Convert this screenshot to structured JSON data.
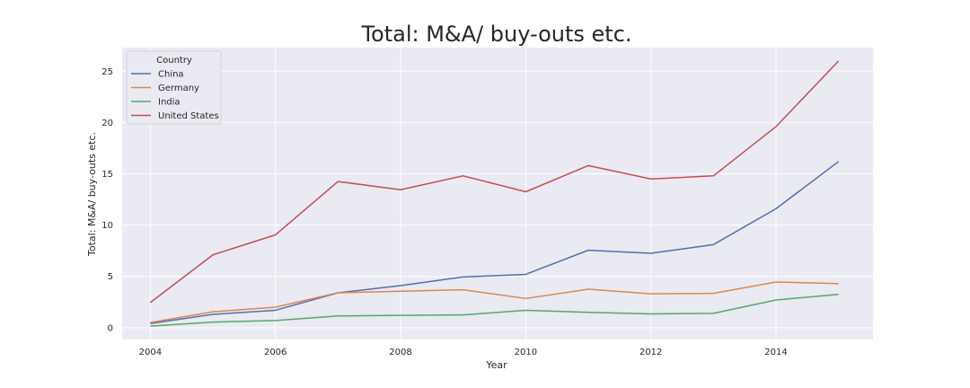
{
  "chart_data": {
    "type": "line",
    "title": "Total: M&A/ buy-outs etc.",
    "xlabel": "Year",
    "ylabel": "Total: M&A/ buy-outs etc.",
    "x": [
      2004,
      2005,
      2006,
      2007,
      2008,
      2009,
      2010,
      2011,
      2012,
      2013,
      2014,
      2015
    ],
    "xlim": [
      2003.55,
      2015.55
    ],
    "ylim": [
      -1.15,
      27.3
    ],
    "xticks": [
      2004,
      2006,
      2008,
      2010,
      2012,
      2014
    ],
    "yticks": [
      0,
      5,
      10,
      15,
      20,
      25
    ],
    "grid": true,
    "legend": {
      "title": "Country",
      "position": "top-left"
    },
    "series": [
      {
        "name": "China",
        "color": "#4c72b0",
        "values": [
          0.4,
          1.3,
          1.7,
          3.4,
          4.1,
          4.95,
          5.2,
          7.55,
          7.25,
          8.1,
          11.6,
          16.2
        ]
      },
      {
        "name": "Germany",
        "color": "#dd8452",
        "values": [
          0.5,
          1.55,
          2.0,
          3.4,
          3.55,
          3.7,
          2.85,
          3.75,
          3.3,
          3.35,
          4.45,
          4.3
        ]
      },
      {
        "name": "India",
        "color": "#55a868",
        "values": [
          0.15,
          0.55,
          0.7,
          1.15,
          1.2,
          1.25,
          1.7,
          1.5,
          1.35,
          1.4,
          2.7,
          3.25
        ]
      },
      {
        "name": "United States",
        "color": "#c44e52",
        "values": [
          2.45,
          7.1,
          9.05,
          14.25,
          13.45,
          14.8,
          13.25,
          15.8,
          14.5,
          14.8,
          19.6,
          26.0
        ]
      }
    ]
  }
}
